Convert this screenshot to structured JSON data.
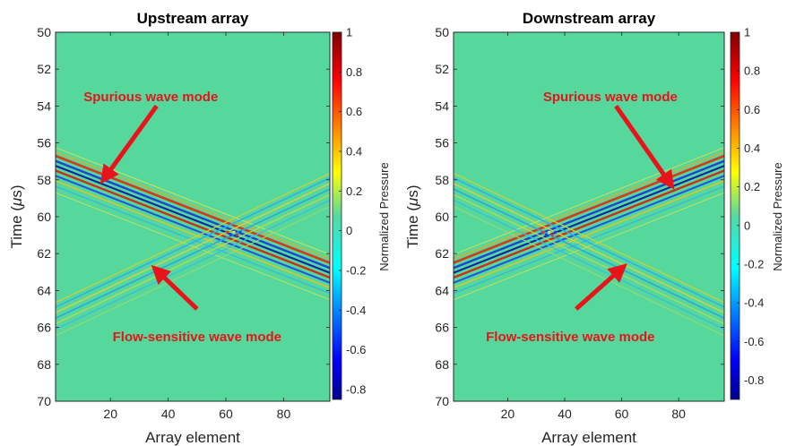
{
  "colors": {
    "background_field": "#56d89c",
    "annotation": "#e8141c",
    "colormap": "jet"
  },
  "chart_data": [
    {
      "type": "heatmap",
      "title": "Upstream array",
      "xlabel": "Array element",
      "ylabel": "Time (μs)",
      "ylabel_prefix": "Time (",
      "ylabel_mu": "μ",
      "ylabel_suffix": "s)",
      "xlim": [
        1,
        96
      ],
      "ylim": [
        50,
        70
      ],
      "y_reversed": true,
      "xticks": [
        20,
        40,
        60,
        80
      ],
      "yticks": [
        50,
        52,
        54,
        56,
        58,
        60,
        62,
        64,
        66,
        68,
        70
      ],
      "colorbar": {
        "label": "Normalized Pressure",
        "range": [
          -0.85,
          1
        ],
        "ticks": [
          1,
          0.8,
          0.6,
          0.4,
          0.2,
          0,
          -0.2,
          -0.4,
          -0.6,
          -0.8
        ]
      },
      "wave_modes": [
        {
          "name": "Spurious wave mode",
          "time_start": 57.2,
          "time_end": 63.0,
          "strength": 1.0
        },
        {
          "name": "Flow-sensitive wave mode",
          "time_start": 65.5,
          "time_end": 58.5,
          "strength": 0.45
        }
      ],
      "annotations": [
        {
          "text": "Spurious wave mode",
          "text_x": 34,
          "text_y": 53.5,
          "arrow_from": [
            36,
            54.0
          ],
          "arrow_to": [
            18,
            57.9
          ]
        },
        {
          "text": "Flow-sensitive wave mode",
          "text_x": 50,
          "text_y": 66.5,
          "arrow_from": [
            50,
            65.0
          ],
          "arrow_to": [
            36,
            62.9
          ]
        }
      ]
    },
    {
      "type": "heatmap",
      "title": "Downstream array",
      "xlabel": "Array element",
      "ylabel": "Time (μs)",
      "ylabel_prefix": "Time (",
      "ylabel_mu": "μ",
      "ylabel_suffix": "s)",
      "xlim": [
        1,
        96
      ],
      "ylim": [
        50,
        70
      ],
      "y_reversed": true,
      "xticks": [
        20,
        40,
        60,
        80
      ],
      "yticks": [
        50,
        52,
        54,
        56,
        58,
        60,
        62,
        64,
        66,
        68,
        70
      ],
      "colorbar": {
        "label": "Normalized Pressure",
        "range": [
          -0.9,
          1
        ],
        "ticks": [
          1,
          0.8,
          0.6,
          0.4,
          0.2,
          0,
          -0.2,
          -0.4,
          -0.6,
          -0.8
        ]
      },
      "wave_modes": [
        {
          "name": "Spurious wave mode",
          "time_start": 63.0,
          "time_end": 57.2,
          "strength": 1.0
        },
        {
          "name": "Flow-sensitive wave mode",
          "time_start": 58.5,
          "time_end": 65.5,
          "strength": 0.45
        }
      ],
      "annotations": [
        {
          "text": "Spurious wave mode",
          "text_x": 56,
          "text_y": 53.5,
          "arrow_from": [
            58,
            54.0
          ],
          "arrow_to": [
            77,
            58.2
          ]
        },
        {
          "text": "Flow-sensitive wave mode",
          "text_x": 42,
          "text_y": 66.5,
          "arrow_from": [
            44,
            65.0
          ],
          "arrow_to": [
            60,
            62.8
          ]
        }
      ]
    }
  ]
}
